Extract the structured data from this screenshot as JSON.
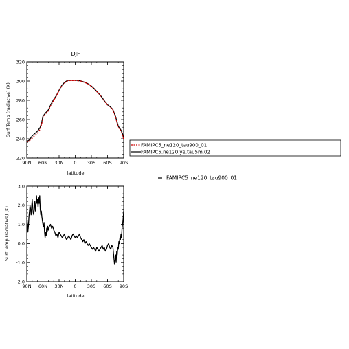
{
  "chart_data": [
    {
      "type": "line",
      "title": "DJF",
      "xlabel": "latitude",
      "ylabel": "Surf Temp (radiative) (K)",
      "x_tick_values": [
        90,
        60,
        30,
        0,
        -30,
        -60,
        -90
      ],
      "x_tick_labels": [
        "90N",
        "60N",
        "30N",
        "0",
        "30S",
        "60S",
        "90S"
      ],
      "xlim": [
        90,
        -90
      ],
      "ylim": [
        220,
        320
      ],
      "y_tick_values": [
        220,
        240,
        260,
        280,
        300,
        320
      ],
      "y_tick_labels": [
        "220",
        "240",
        "260",
        "280",
        "300",
        "320"
      ],
      "grid": false,
      "legend_position": "right",
      "series": [
        {
          "name": "FAMIPC5_ne120_tau900_01",
          "color": "#cc0000",
          "dashed": true,
          "x": [
            90,
            85,
            80,
            75,
            72,
            70,
            65,
            62,
            60,
            55,
            50,
            45,
            40,
            35,
            30,
            25,
            20,
            15,
            10,
            5,
            0,
            -5,
            -10,
            -15,
            -20,
            -25,
            -30,
            -35,
            -40,
            -45,
            -50,
            -55,
            -58,
            -60,
            -65,
            -70,
            -75,
            -80,
            -85,
            -88,
            -90
          ],
          "values": [
            236.5,
            238,
            240.5,
            243.5,
            245,
            246,
            250,
            256,
            262,
            266,
            269,
            275,
            280,
            284.5,
            290,
            295,
            298,
            300,
            300.5,
            300.5,
            300.5,
            300.3,
            300,
            299,
            298,
            296.5,
            294.5,
            292,
            289,
            286,
            282.5,
            278.5,
            276.5,
            275,
            273,
            270,
            262,
            252,
            248,
            244,
            239
          ]
        },
        {
          "name": "FAMIPC5.ne120.ye.tau5m.02",
          "color": "#000000",
          "dashed": false,
          "x": [
            90,
            85,
            80,
            75,
            72,
            70,
            65,
            62,
            60,
            55,
            50,
            45,
            40,
            35,
            30,
            25,
            20,
            15,
            10,
            5,
            0,
            -5,
            -10,
            -15,
            -20,
            -25,
            -30,
            -35,
            -40,
            -45,
            -50,
            -55,
            -58,
            -60,
            -65,
            -70,
            -75,
            -80,
            -85,
            -88,
            -90
          ],
          "values": [
            237,
            239,
            243,
            245.5,
            247,
            248,
            252,
            258,
            263.5,
            267,
            270,
            276,
            281,
            285,
            290.5,
            295.5,
            298.5,
            300.5,
            301,
            301,
            301,
            300.5,
            300.2,
            299.3,
            298.3,
            296.8,
            294.8,
            292.3,
            289.3,
            286.3,
            282.8,
            278.8,
            276.8,
            275.3,
            273.3,
            270.5,
            263,
            253,
            249,
            245,
            240
          ]
        }
      ]
    },
    {
      "type": "line",
      "title": "",
      "xlabel": "latitude",
      "ylabel": "Surf Temp (radiative) (K)",
      "x_tick_values": [
        90,
        60,
        30,
        0,
        -30,
        -60,
        -90
      ],
      "x_tick_labels": [
        "90N",
        "60N",
        "30N",
        "0",
        "30S",
        "60S",
        "90S"
      ],
      "xlim": [
        90,
        -90
      ],
      "ylim": [
        -2.0,
        3.0
      ],
      "y_tick_values": [
        -2.0,
        -1.0,
        0.0,
        1.0,
        2.0,
        3.0
      ],
      "y_tick_labels": [
        "-2.0",
        "-1.0",
        "0.0",
        "1.0",
        "2.0",
        "3.0"
      ],
      "grid": false,
      "legend_position": "right",
      "series": [
        {
          "name": "FAMIPC5_ne120_tau900_01",
          "color": "#000000",
          "dashed": false,
          "x": [
            90,
            89,
            88,
            87,
            86,
            85,
            84,
            83,
            82,
            81,
            80,
            79,
            78,
            77,
            76,
            75,
            74,
            73,
            72,
            71,
            70,
            69,
            68,
            67,
            66,
            65,
            64,
            63,
            62,
            61,
            60,
            59,
            58,
            57,
            56,
            55,
            54,
            53,
            52,
            51,
            50,
            48,
            46,
            44,
            42,
            40,
            38,
            36,
            34,
            32,
            30,
            28,
            26,
            24,
            22,
            20,
            18,
            16,
            14,
            12,
            10,
            8,
            6,
            4,
            2,
            0,
            -2,
            -4,
            -6,
            -8,
            -10,
            -12,
            -14,
            -16,
            -18,
            -20,
            -22,
            -24,
            -26,
            -28,
            -30,
            -32,
            -34,
            -36,
            -38,
            -40,
            -42,
            -44,
            -46,
            -48,
            -50,
            -52,
            -54,
            -56,
            -58,
            -60,
            -62,
            -64,
            -66,
            -68,
            -70,
            -71,
            -72,
            -73,
            -74,
            -75,
            -76,
            -77,
            -78,
            -79,
            -80,
            -81,
            -82,
            -83,
            -84,
            -85,
            -86,
            -87,
            -88,
            -89,
            -90
          ],
          "values": [
            1.3,
            1.1,
            0.6,
            0.9,
            1.4,
            1.7,
            2.0,
            1.8,
            1.5,
            1.9,
            2.3,
            1.9,
            1.6,
            1.5,
            1.9,
            2.2,
            1.7,
            2.0,
            2.5,
            2.1,
            2.3,
            1.9,
            2.4,
            2.1,
            2.5,
            1.8,
            1.5,
            1.7,
            1.4,
            1.2,
            1.0,
            0.9,
            1.1,
            0.6,
            0.3,
            0.6,
            0.4,
            0.8,
            0.6,
            0.9,
            0.7,
            0.9,
            1.0,
            0.8,
            0.9,
            0.7,
            0.6,
            0.4,
            0.5,
            0.3,
            0.6,
            0.5,
            0.4,
            0.3,
            0.4,
            0.5,
            0.3,
            0.2,
            0.3,
            0.4,
            0.3,
            0.2,
            0.4,
            0.5,
            0.4,
            0.3,
            0.4,
            0.3,
            0.4,
            0.5,
            0.3,
            0.2,
            0.1,
            0.2,
            0.0,
            0.1,
            0.0,
            -0.1,
            0.0,
            -0.1,
            -0.2,
            -0.3,
            -0.2,
            -0.3,
            -0.4,
            -0.2,
            -0.3,
            -0.4,
            -0.3,
            -0.2,
            -0.1,
            -0.3,
            -0.2,
            -0.4,
            -0.3,
            -0.1,
            0.0,
            -0.2,
            -0.3,
            -0.1,
            -0.2,
            -0.5,
            -0.8,
            -1.1,
            -0.9,
            -0.6,
            -1.0,
            -0.4,
            -0.6,
            -0.2,
            -0.3,
            0.1,
            0.0,
            0.3,
            0.2,
            0.5,
            0.3,
            0.8,
            1.0,
            1.3,
            1.7
          ]
        }
      ]
    }
  ],
  "legend_top": {
    "entries": [
      {
        "label": "FAMIPC5_ne120_tau900_01",
        "color": "#cc0000",
        "dashed": true
      },
      {
        "label": "FAMIPC5.ne120.ye.tau5m.02",
        "color": "#000000",
        "dashed": false
      }
    ]
  },
  "legend_bottom": {
    "label": "FAMIPC5_ne120_tau900_01"
  }
}
